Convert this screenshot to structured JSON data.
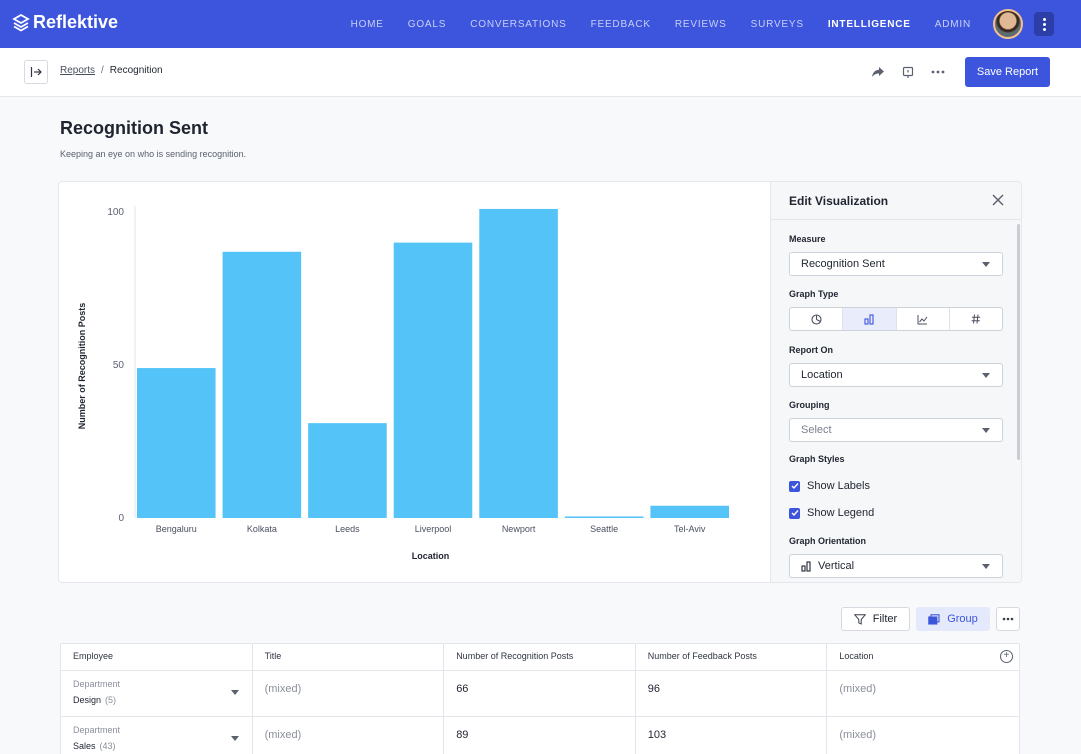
{
  "nav": {
    "brand": "Reflektive",
    "links": [
      "HOME",
      "GOALS",
      "CONVERSATIONS",
      "FEEDBACK",
      "REVIEWS",
      "SURVEYS",
      "INTELLIGENCE",
      "ADMIN"
    ],
    "active": "INTELLIGENCE",
    "accent": "#3d55dd"
  },
  "breadcrumb": {
    "parent": "Reports",
    "current": "Recognition"
  },
  "actions": {
    "save_label": "Save Report"
  },
  "page": {
    "title": "Recognition Sent",
    "subtitle": "Keeping an eye on who is sending recognition."
  },
  "chart_data": {
    "type": "bar",
    "categories": [
      "Bengaluru",
      "Kolkata",
      "Leeds",
      "Liverpool",
      "Newport",
      "Seattle",
      "Tel-Aviv"
    ],
    "values": [
      49,
      87,
      31,
      90,
      101,
      0.5,
      4
    ],
    "xlabel": "Location",
    "ylabel": "Number of Recognition Posts",
    "ylim": [
      0,
      100
    ],
    "yticks": [
      0,
      50,
      100
    ],
    "bar_color": "#54c4f8",
    "grid": false
  },
  "edit_panel": {
    "title": "Edit Visualization",
    "measure_label": "Measure",
    "measure_value": "Recognition Sent",
    "graph_type_label": "Graph Type",
    "graph_types": [
      "pie-chart-icon",
      "bar-chart-icon",
      "line-chart-icon",
      "number-icon"
    ],
    "graph_type_active": "bar-chart-icon",
    "report_on_label": "Report On",
    "report_on_value": "Location",
    "grouping_label": "Grouping",
    "grouping_placeholder": "Select",
    "graph_styles_label": "Graph Styles",
    "show_labels": "Show Labels",
    "show_legend": "Show Legend",
    "orientation_label": "Graph Orientation",
    "orientation_value": "Vertical"
  },
  "toolbar": {
    "filter_label": "Filter",
    "group_label": "Group"
  },
  "table": {
    "columns": [
      "Employee",
      "Title",
      "Number of Recognition Posts",
      "Number of Feedback Posts",
      "Location"
    ],
    "rows": [
      {
        "group_label": "Department",
        "group_name": "Design",
        "count": "(5)",
        "title": "(mixed)",
        "recognition": "66",
        "feedback": "96",
        "location": "(mixed)"
      },
      {
        "group_label": "Department",
        "group_name": "Sales",
        "count": "(43)",
        "title": "(mixed)",
        "recognition": "89",
        "feedback": "103",
        "location": "(mixed)"
      }
    ]
  }
}
